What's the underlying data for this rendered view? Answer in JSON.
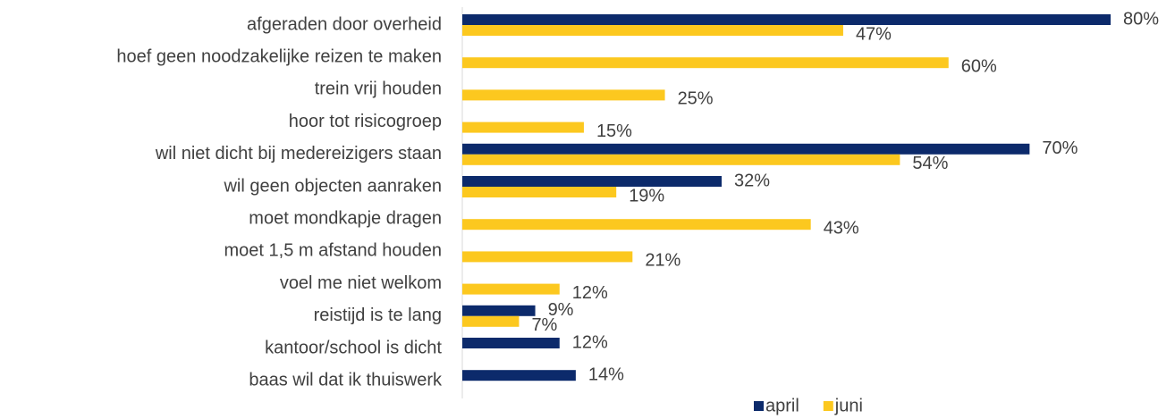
{
  "chart_data": {
    "type": "bar",
    "orientation": "horizontal",
    "categories": [
      "afgeraden door overheid",
      "hoef geen noodzakelijke reizen te maken",
      "trein vrij houden",
      "hoor tot risicogroep",
      "wil niet dicht bij medereizigers staan",
      "wil geen objecten aanraken",
      "moet mondkapje dragen",
      "moet 1,5 m afstand houden",
      "voel me niet welkom",
      "reistijd is te lang",
      "kantoor/school is dicht",
      "baas wil dat ik thuiswerk"
    ],
    "series": [
      {
        "name": "april",
        "color": "#0c2a6b",
        "values": [
          80,
          null,
          null,
          null,
          70,
          32,
          null,
          null,
          null,
          9,
          12,
          14
        ],
        "value_labels": [
          "80%",
          null,
          null,
          null,
          "70%",
          "32%",
          null,
          null,
          null,
          "9%",
          "12%",
          "14%"
        ]
      },
      {
        "name": "juni",
        "color": "#fcc81f",
        "values": [
          47,
          60,
          25,
          15,
          54,
          19,
          43,
          21,
          12,
          7,
          null,
          null
        ],
        "value_labels": [
          "47%",
          "60%",
          "25%",
          "15%",
          "54%",
          "19%",
          "43%",
          "21%",
          "12%",
          "7%",
          null,
          null
        ]
      }
    ],
    "legend": "bottom"
  }
}
